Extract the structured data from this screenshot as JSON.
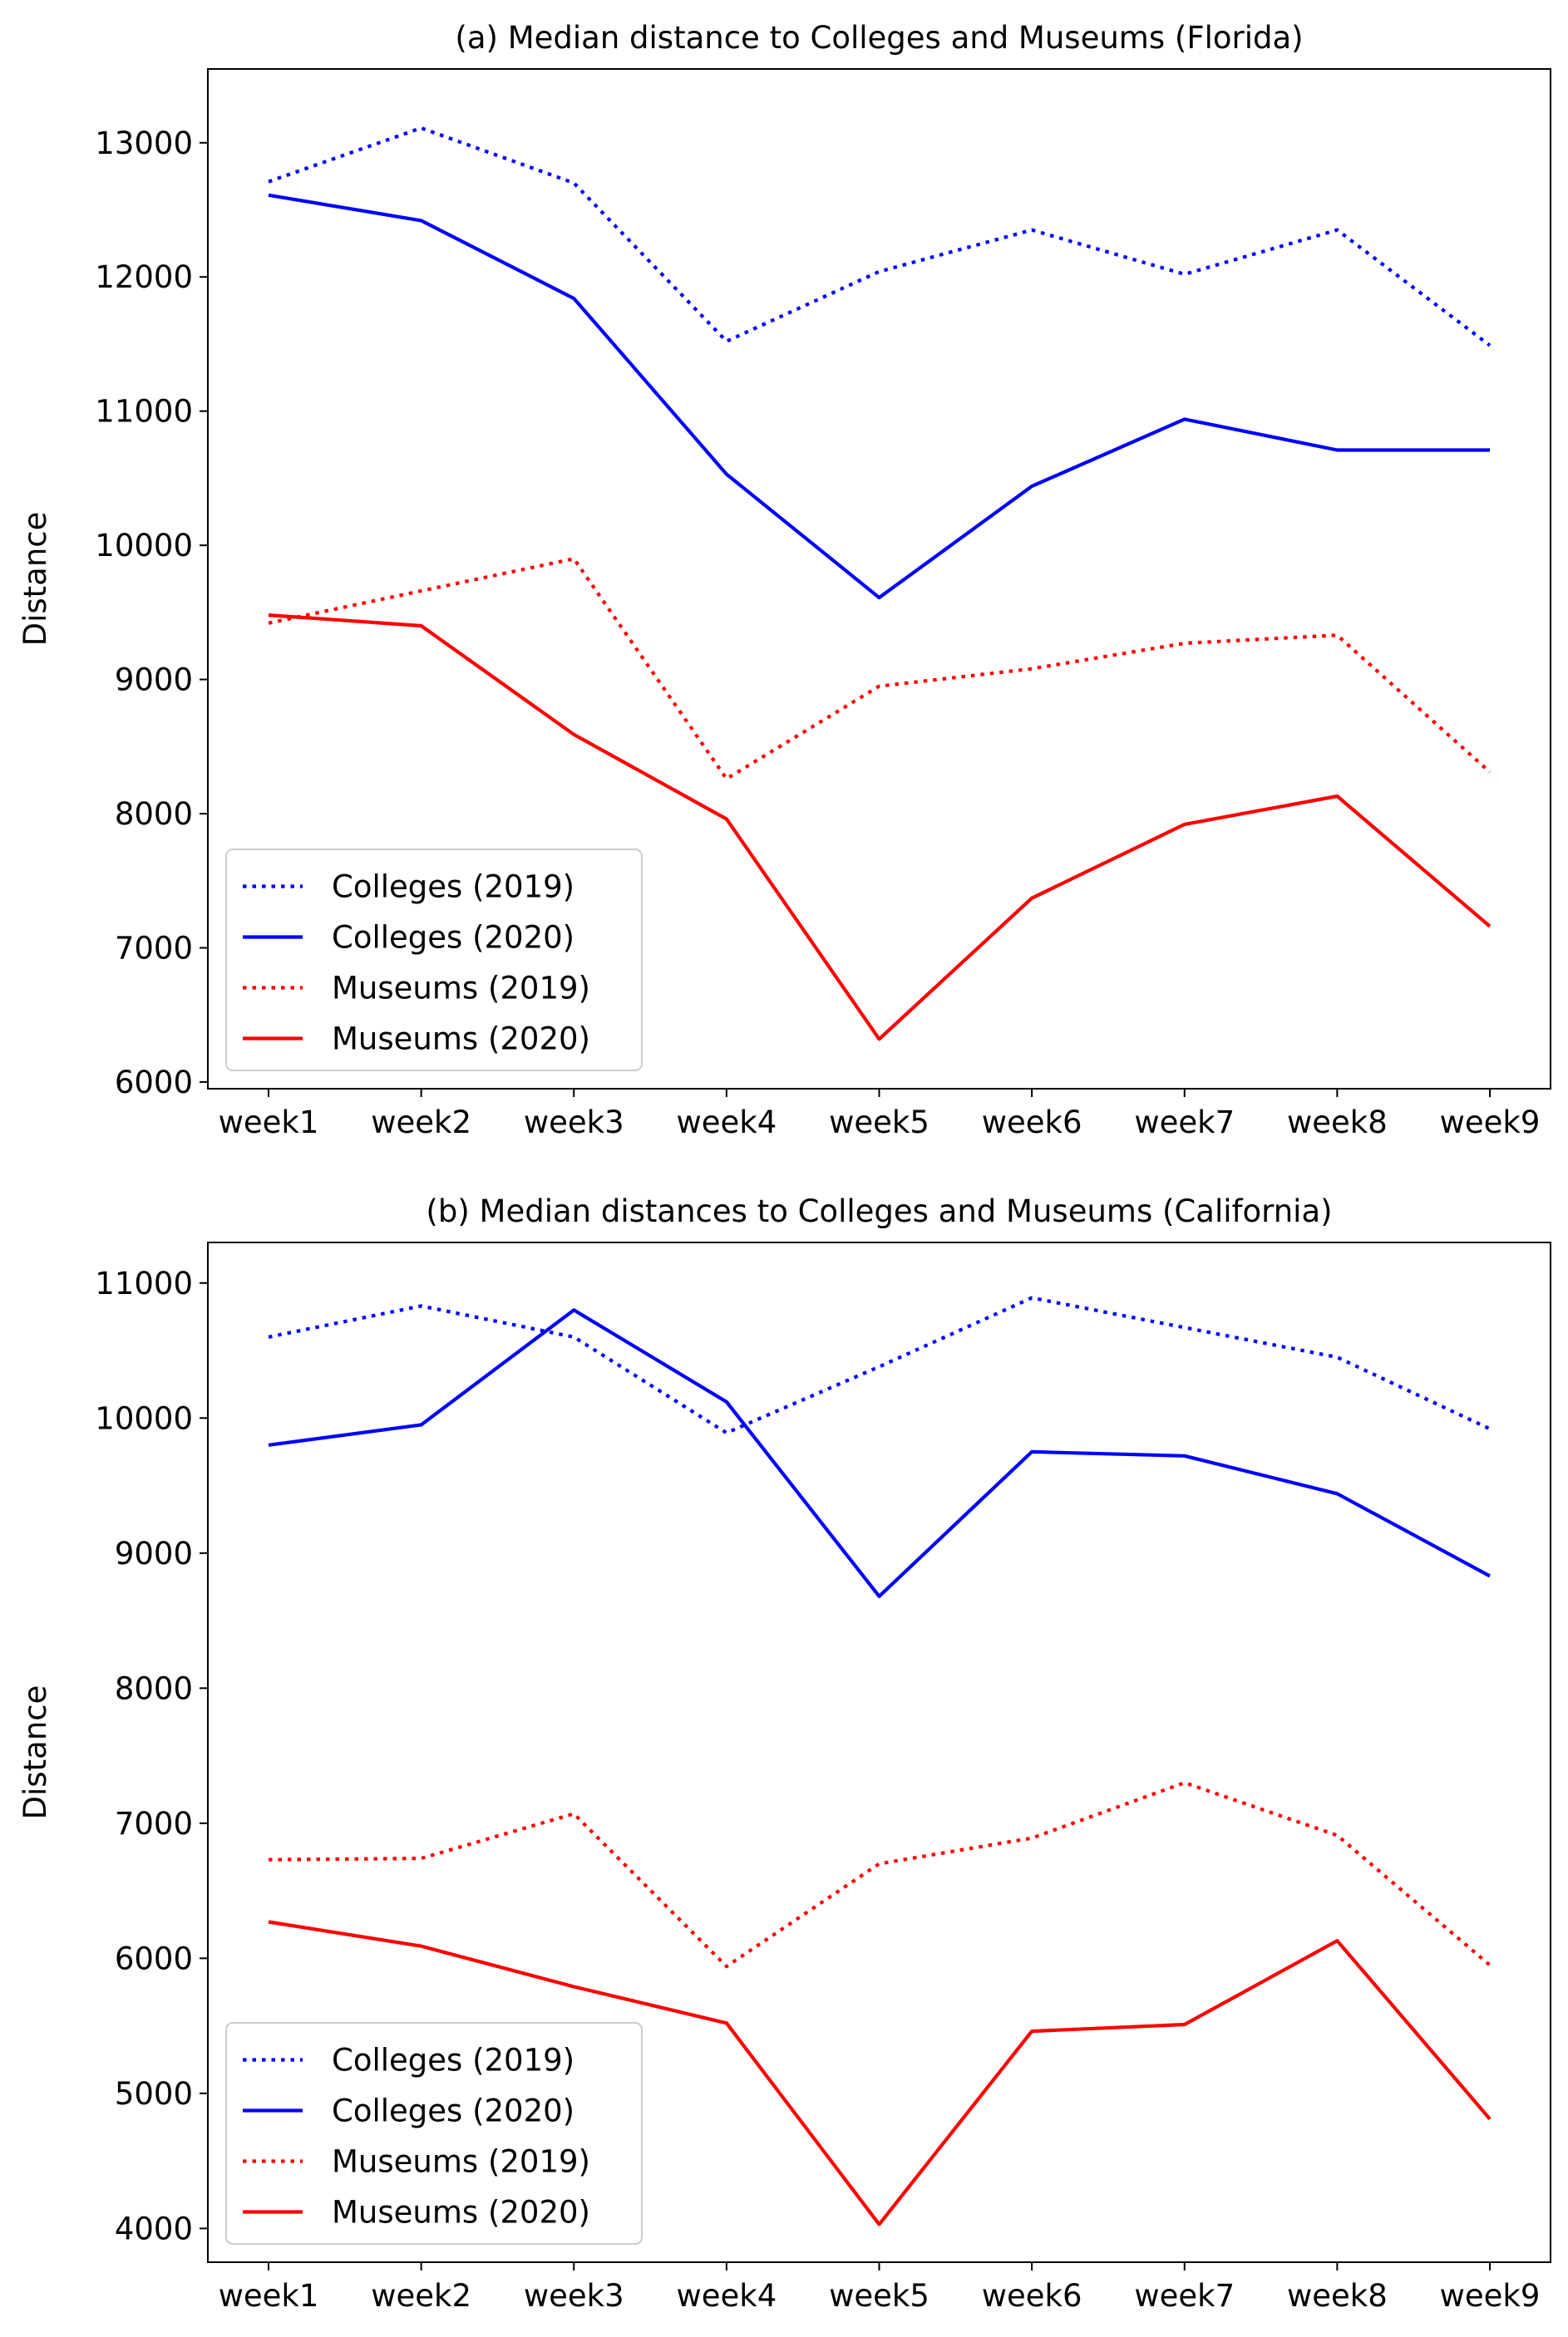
{
  "chart_data": [
    {
      "type": "line",
      "title": "(a) Median distance to Colleges and Museums (Florida)",
      "xlabel": "",
      "ylabel": "Distance",
      "categories": [
        "week1",
        "week2",
        "week3",
        "week4",
        "week5",
        "week6",
        "week7",
        "week8",
        "week9"
      ],
      "yticks": [
        6000,
        7000,
        8000,
        9000,
        10000,
        11000,
        12000,
        13000
      ],
      "ylim": [
        5950,
        13550
      ],
      "grid": false,
      "legend_position": "lower-left",
      "series": [
        {
          "name": "Colleges (2019)",
          "color": "#0000ff",
          "style": "dotted",
          "values": [
            12710,
            13110,
            12700,
            11520,
            12040,
            12350,
            12020,
            12350,
            11490
          ]
        },
        {
          "name": "Colleges (2020)",
          "color": "#0000ff",
          "style": "solid",
          "values": [
            12610,
            12420,
            11840,
            10530,
            9610,
            10440,
            10940,
            10710,
            10710
          ]
        },
        {
          "name": "Museums (2019)",
          "color": "#ff0000",
          "style": "dotted",
          "values": [
            9420,
            9660,
            9900,
            8260,
            8950,
            9080,
            9270,
            9330,
            8310
          ]
        },
        {
          "name": "Museums (2020)",
          "color": "#ff0000",
          "style": "solid",
          "values": [
            9480,
            9400,
            8590,
            7960,
            6320,
            7370,
            7920,
            8130,
            7160
          ]
        }
      ]
    },
    {
      "type": "line",
      "title": "(b) Median distances to Colleges and Museums (California)",
      "xlabel": "",
      "ylabel": "Distance",
      "categories": [
        "week1",
        "week2",
        "week3",
        "week4",
        "week5",
        "week6",
        "week7",
        "week8",
        "week9"
      ],
      "yticks": [
        4000,
        5000,
        6000,
        7000,
        8000,
        9000,
        10000,
        11000
      ],
      "ylim": [
        3750,
        11300
      ],
      "grid": false,
      "legend_position": "lower-left",
      "series": [
        {
          "name": "Colleges (2019)",
          "color": "#0000ff",
          "style": "dotted",
          "values": [
            10600,
            10830,
            10600,
            9890,
            10380,
            10890,
            10670,
            10450,
            9920
          ]
        },
        {
          "name": "Colleges (2020)",
          "color": "#0000ff",
          "style": "solid",
          "values": [
            9800,
            9950,
            10800,
            10120,
            8680,
            9750,
            9720,
            9440,
            8830
          ]
        },
        {
          "name": "Museums (2019)",
          "color": "#ff0000",
          "style": "dotted",
          "values": [
            6730,
            6740,
            7070,
            5940,
            6700,
            6890,
            7300,
            6910,
            5950
          ]
        },
        {
          "name": "Museums (2020)",
          "color": "#ff0000",
          "style": "solid",
          "values": [
            6270,
            6090,
            5790,
            5520,
            4030,
            5460,
            5510,
            6130,
            4810
          ]
        }
      ]
    }
  ]
}
